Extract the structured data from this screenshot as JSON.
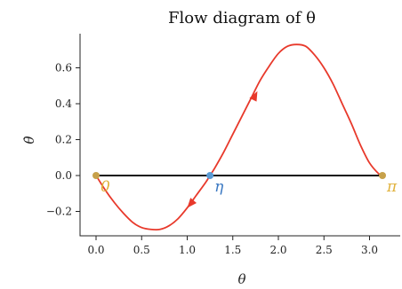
{
  "chart_data": {
    "type": "line",
    "title": "Flow diagram of θ",
    "xlabel": "θ",
    "ylabel": "θ̇",
    "xlim": [
      -0.18,
      3.3
    ],
    "ylim": [
      -0.33,
      0.78
    ],
    "x_ticks": [
      0.0,
      0.5,
      1.0,
      1.5,
      2.0,
      2.5,
      3.0
    ],
    "x_tick_labels": [
      "0.0",
      "0.5",
      "1.0",
      "1.5",
      "2.0",
      "2.5",
      "3.0"
    ],
    "y_ticks": [
      -0.2,
      0.0,
      0.2,
      0.4,
      0.6
    ],
    "y_tick_labels": [
      "−0.2",
      "0.0",
      "0.2",
      "0.4",
      "0.6"
    ],
    "grid": false,
    "series": [
      {
        "kind": "curve",
        "color": "#e8392b",
        "x": [
          0.0,
          0.1,
          0.2,
          0.3,
          0.4,
          0.5,
          0.6,
          0.7,
          0.8,
          0.9,
          1.0,
          1.1,
          1.2,
          1.25,
          1.3,
          1.4,
          1.5,
          1.6,
          1.7,
          1.8,
          1.9,
          2.0,
          2.1,
          2.2,
          2.3,
          2.4,
          2.5,
          2.6,
          2.7,
          2.8,
          2.9,
          3.0,
          3.1,
          3.1416
        ],
        "y": [
          0.0,
          -0.08,
          -0.15,
          -0.21,
          -0.26,
          -0.29,
          -0.3,
          -0.3,
          -0.28,
          -0.24,
          -0.18,
          -0.11,
          -0.04,
          0.0,
          0.04,
          0.13,
          0.23,
          0.33,
          0.43,
          0.53,
          0.61,
          0.68,
          0.72,
          0.73,
          0.72,
          0.67,
          0.6,
          0.51,
          0.4,
          0.29,
          0.17,
          0.07,
          0.01,
          0.0
        ]
      },
      {
        "kind": "baseline",
        "color": "#111111",
        "x": [
          0.0,
          3.1416
        ],
        "y": [
          0.0,
          0.0
        ]
      }
    ],
    "arrows": [
      {
        "x": 1.0,
        "y": -0.18,
        "dx": -1,
        "color": "#e8392b"
      },
      {
        "x": 1.77,
        "y": 0.47,
        "dx": 1,
        "color": "#e8392b"
      }
    ],
    "fixed_points": [
      {
        "x": 0.0,
        "y": 0.0,
        "label": "0",
        "color": "#c7a14a",
        "label_color": "#e0b13a"
      },
      {
        "x": 1.25,
        "y": 0.0,
        "label": "η",
        "color": "#5a9bd5",
        "label_color": "#3a78c2"
      },
      {
        "x": 3.1416,
        "y": 0.0,
        "label": "π",
        "color": "#c7a14a",
        "label_color": "#e0b13a"
      }
    ]
  }
}
